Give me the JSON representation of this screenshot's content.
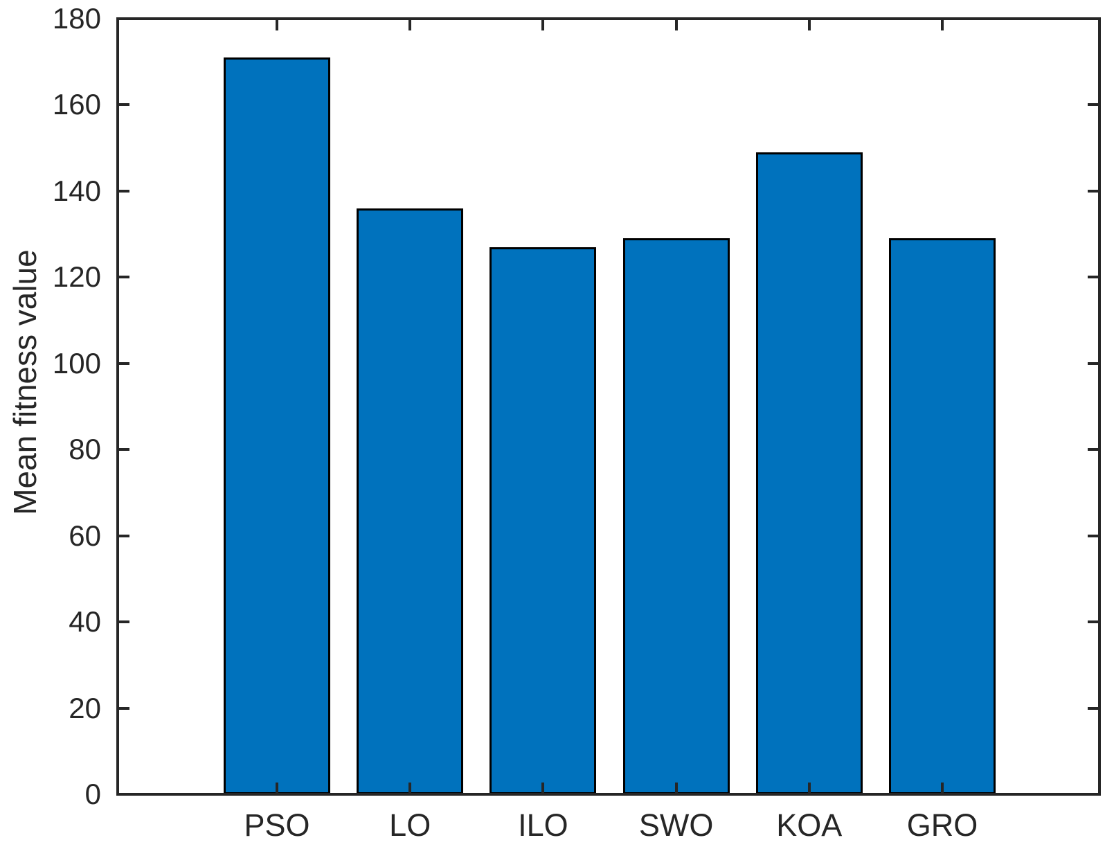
{
  "chart_data": {
    "type": "bar",
    "title": "",
    "categories": [
      "PSO",
      "LO",
      "ILO",
      "SWO",
      "KOA",
      "GRO"
    ],
    "values": [
      171,
      136,
      127,
      129,
      149,
      129
    ],
    "xlabel": "",
    "ylabel": "Mean fitness value",
    "ylim": [
      0,
      180
    ],
    "yticks": [
      0,
      20,
      40,
      60,
      80,
      100,
      120,
      140,
      160,
      180
    ],
    "grid": false,
    "legend": "none",
    "box": "on",
    "tick_direction": "in",
    "bar_fill_color": "#0072BD",
    "bar_edge_color": "#000000",
    "axis_color": "#262626",
    "background_color": "#ffffff"
  }
}
